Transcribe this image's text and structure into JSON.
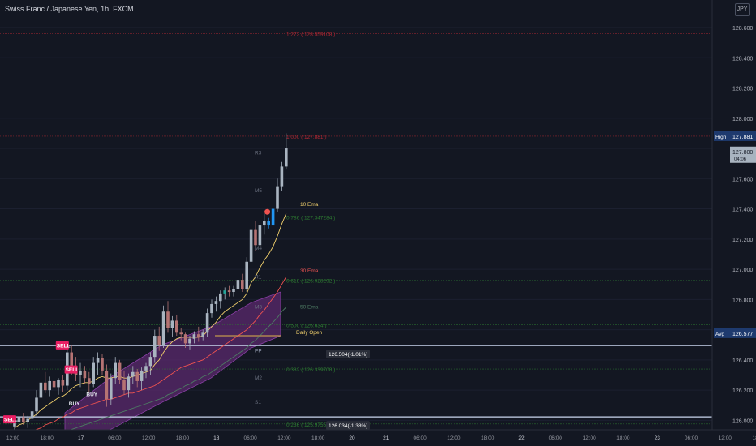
{
  "title": "Swiss Franc / Japanese Yen, 1h, FXCM",
  "currency": "JPY",
  "chart_data": {
    "type": "candlestick",
    "symbol": "CHFJPY",
    "timeframe": "1h",
    "ylim": [
      125.96,
      128.7
    ],
    "y_ticks": [
      "128.600",
      "128.400",
      "128.200",
      "128.000",
      "127.800",
      "127.600",
      "127.400",
      "127.200",
      "127.000",
      "126.800",
      "126.600",
      "126.400",
      "126.200",
      "126.000"
    ],
    "x_ticks": [
      "12:00",
      "18:00",
      "17",
      "06:00",
      "12:00",
      "18:00",
      "18",
      "06:00",
      "12:00",
      "18:00",
      "20",
      "21",
      "06:00",
      "12:00",
      "18:00",
      "22",
      "06:00",
      "12:00",
      "18:00",
      "23",
      "06:00",
      "12:00",
      "18:00"
    ],
    "candles": [
      [
        125.96,
        126.01,
        125.94,
        125.99
      ],
      [
        125.99,
        126.04,
        125.96,
        126.02
      ],
      [
        126.02,
        126.05,
        125.97,
        125.99
      ],
      [
        125.99,
        126.03,
        125.95,
        126.01
      ],
      [
        126.01,
        126.08,
        125.99,
        126.06
      ],
      [
        126.06,
        126.2,
        126.03,
        126.15
      ],
      [
        126.15,
        126.28,
        126.1,
        126.25
      ],
      [
        126.25,
        126.32,
        126.18,
        126.2
      ],
      [
        126.2,
        126.29,
        126.16,
        126.26
      ],
      [
        126.26,
        126.31,
        126.2,
        126.22
      ],
      [
        126.22,
        126.28,
        126.17,
        126.27
      ],
      [
        126.27,
        126.3,
        126.19,
        126.23
      ],
      [
        126.23,
        126.52,
        126.2,
        126.45
      ],
      [
        126.45,
        126.5,
        126.3,
        126.34
      ],
      [
        126.34,
        126.42,
        126.26,
        126.3
      ],
      [
        126.3,
        126.38,
        126.22,
        126.33
      ],
      [
        126.33,
        126.36,
        126.24,
        126.28
      ],
      [
        126.28,
        126.32,
        126.18,
        126.24
      ],
      [
        126.24,
        126.42,
        126.22,
        126.38
      ],
      [
        126.38,
        126.45,
        126.3,
        126.41
      ],
      [
        126.41,
        126.44,
        126.3,
        126.33
      ],
      [
        126.33,
        126.37,
        126.09,
        126.14
      ],
      [
        126.14,
        126.31,
        126.1,
        126.28
      ],
      [
        126.28,
        126.42,
        126.24,
        126.38
      ],
      [
        126.38,
        126.4,
        126.24,
        126.27
      ],
      [
        126.27,
        126.33,
        126.17,
        126.2
      ],
      [
        126.2,
        126.31,
        126.15,
        126.29
      ],
      [
        126.29,
        126.36,
        126.24,
        126.32
      ],
      [
        126.32,
        126.34,
        126.22,
        126.26
      ],
      [
        126.26,
        126.35,
        126.2,
        126.33
      ],
      [
        126.33,
        126.38,
        126.28,
        126.36
      ],
      [
        126.36,
        126.45,
        126.3,
        126.42
      ],
      [
        126.42,
        126.6,
        126.38,
        126.56
      ],
      [
        126.56,
        126.62,
        126.46,
        126.5
      ],
      [
        126.5,
        126.76,
        126.48,
        126.72
      ],
      [
        126.72,
        126.79,
        126.58,
        126.61
      ],
      [
        126.61,
        126.69,
        126.55,
        126.66
      ],
      [
        126.66,
        126.7,
        126.56,
        126.58
      ],
      [
        126.58,
        126.61,
        126.53,
        126.57
      ],
      [
        126.57,
        126.58,
        126.48,
        126.51
      ],
      [
        126.51,
        126.56,
        126.47,
        126.54
      ],
      [
        126.54,
        126.59,
        126.51,
        126.57
      ],
      [
        126.57,
        126.62,
        126.52,
        126.55
      ],
      [
        126.55,
        126.6,
        126.53,
        126.58
      ],
      [
        126.58,
        126.74,
        126.55,
        126.71
      ],
      [
        126.71,
        126.8,
        126.68,
        126.77
      ],
      [
        126.77,
        126.82,
        126.72,
        126.79
      ],
      [
        126.79,
        126.86,
        126.74,
        126.84
      ],
      [
        126.84,
        126.88,
        126.8,
        126.86
      ],
      [
        126.86,
        126.89,
        126.82,
        126.85
      ],
      [
        126.85,
        126.89,
        126.82,
        126.87
      ],
      [
        126.87,
        126.96,
        126.84,
        126.93
      ],
      [
        126.93,
        126.97,
        126.85,
        126.87
      ],
      [
        126.87,
        127.08,
        126.85,
        127.05
      ],
      [
        127.05,
        127.3,
        127.02,
        127.26
      ],
      [
        127.26,
        127.32,
        127.12,
        127.16
      ],
      [
        127.16,
        127.34,
        127.12,
        127.29
      ],
      [
        127.29,
        127.37,
        127.23,
        127.32
      ],
      [
        127.32,
        127.34,
        127.27,
        127.29
      ],
      [
        127.29,
        127.44,
        127.26,
        127.4
      ],
      [
        127.4,
        127.6,
        127.38,
        127.55
      ],
      [
        127.55,
        127.71,
        127.52,
        127.68
      ],
      [
        127.68,
        127.9,
        127.66,
        127.8
      ]
    ],
    "emas": [
      {
        "name": "10 Ema",
        "color": "#f0cf6c",
        "values": [
          125.95,
          125.97,
          125.98,
          126.0,
          126.02,
          126.04,
          126.07,
          126.09,
          126.11,
          126.13,
          126.15,
          126.16,
          126.18,
          126.21,
          126.23,
          126.24,
          126.25,
          126.25,
          126.26,
          126.28,
          126.29,
          126.28,
          126.28,
          126.29,
          126.29,
          126.28,
          126.28,
          126.29,
          126.3,
          126.31,
          126.32,
          126.33,
          126.37,
          126.4,
          126.45,
          126.49,
          126.52,
          126.54,
          126.55,
          126.55,
          126.55,
          126.55,
          126.55,
          126.56,
          126.59,
          126.62,
          126.65,
          126.69,
          126.72,
          126.74,
          126.76,
          126.78,
          126.8,
          126.84,
          126.91,
          126.95,
          127.01,
          127.06,
          127.1,
          127.15,
          127.22,
          127.3,
          127.37
        ]
      },
      {
        "name": "30 Ema",
        "color": "#ef5350",
        "values": [
          125.9,
          125.91,
          125.91,
          125.92,
          125.93,
          125.94,
          125.95,
          125.97,
          125.98,
          125.99,
          126.01,
          126.02,
          126.04,
          126.05,
          126.07,
          126.08,
          126.09,
          126.1,
          126.11,
          126.12,
          126.13,
          126.14,
          126.14,
          126.15,
          126.16,
          126.17,
          126.18,
          126.18,
          126.19,
          126.2,
          126.21,
          126.22,
          126.23,
          126.25,
          126.27,
          126.29,
          126.31,
          126.33,
          126.35,
          126.36,
          126.37,
          126.38,
          126.39,
          126.4,
          126.42,
          126.44,
          126.46,
          126.48,
          126.5,
          126.52,
          126.54,
          126.56,
          126.58,
          126.6,
          126.63,
          126.66,
          126.7,
          126.73,
          126.77,
          126.81,
          126.85,
          126.9,
          126.95
        ]
      },
      {
        "name": "50 Ema",
        "color": "#4d7a63",
        "values": [
          125.82,
          125.83,
          125.84,
          125.84,
          125.85,
          125.86,
          125.87,
          125.88,
          125.89,
          125.9,
          125.91,
          125.92,
          125.93,
          125.94,
          125.95,
          125.96,
          125.97,
          125.98,
          125.99,
          126.0,
          126.01,
          126.02,
          126.03,
          126.04,
          126.05,
          126.06,
          126.07,
          126.08,
          126.09,
          126.1,
          126.11,
          126.12,
          126.13,
          126.14,
          126.15,
          126.17,
          126.18,
          126.2,
          126.21,
          126.23,
          126.24,
          126.26,
          126.27,
          126.29,
          126.3,
          126.32,
          126.34,
          126.36,
          126.38,
          126.4,
          126.42,
          126.44,
          126.46,
          126.48,
          126.51,
          126.53,
          126.56,
          126.59,
          126.62,
          126.65,
          126.68,
          126.72,
          126.75
        ]
      }
    ],
    "cloud": {
      "upper": [
        126.05,
        126.3,
        126.5,
        126.62,
        126.78,
        126.85
      ],
      "lower": [
        125.8,
        125.95,
        126.12,
        126.28,
        126.48,
        126.56
      ]
    },
    "fib_levels": [
      {
        "label": "1.272 ( 128.559108 )",
        "price": 128.56,
        "color": "#b22833"
      },
      {
        "label": "1.000 ( 127.881 )",
        "price": 127.881,
        "color": "#b22833"
      },
      {
        "label": "0.786 ( 127.347284 )",
        "price": 127.347,
        "color": "#2e7d32"
      },
      {
        "label": "0.618 ( 126.928292 )",
        "price": 126.928,
        "color": "#2e7d32"
      },
      {
        "label": "0.500 ( 126.634 )",
        "price": 126.634,
        "color": "#2e7d32"
      },
      {
        "label": "0.382 ( 126.339708 )",
        "price": 126.34,
        "color": "#2e7d32"
      },
      {
        "label": "0.236 ( 125.97558 )",
        "price": 125.976,
        "color": "#2e7d32"
      }
    ],
    "pivots": [
      {
        "label": "R3",
        "price": 127.77
      },
      {
        "label": "M5",
        "price": 127.52
      },
      {
        "label": "M4",
        "price": 127.14
      },
      {
        "label": "R1",
        "price": 126.95
      },
      {
        "label": "M3",
        "price": 126.75
      },
      {
        "label": "PP",
        "price": 126.46
      },
      {
        "label": "M2",
        "price": 126.28
      },
      {
        "label": "S1",
        "price": 126.12
      }
    ],
    "daily_open": {
      "label": "Daily Open",
      "price": 126.56
    },
    "ema_labels": [
      {
        "text": "10 Ema",
        "price": 127.42,
        "color": "#f0cf6c"
      },
      {
        "text": "30 Ema",
        "price": 126.98,
        "color": "#ef5350"
      },
      {
        "text": "50 Ema",
        "price": 126.74,
        "color": "#4d7a63"
      }
    ],
    "measure_lines": [
      {
        "label": "126.504(-1.01%)",
        "price": 126.495
      },
      {
        "label": "126.034(-1.38%)",
        "price": 126.023
      }
    ],
    "signals": [
      {
        "text": "SELL",
        "type": "sell",
        "idx": 12,
        "price": 126.47
      },
      {
        "text": "SELL",
        "type": "sell",
        "idx": 14,
        "price": 126.31
      },
      {
        "text": "BUY",
        "type": "buy",
        "idx": 16,
        "price": 126.16
      },
      {
        "text": "BUY",
        "type": "buy",
        "idx": 12,
        "price": 126.1
      },
      {
        "text": "SELL",
        "type": "sell",
        "idx": 0,
        "price": 125.98
      }
    ],
    "red_dot": {
      "idx": 59,
      "price": 127.38
    },
    "price_labels": [
      {
        "tag": "High",
        "value": "127.881",
        "price": 127.881
      },
      {
        "tag": "",
        "value": "127.800",
        "sub": "04:06",
        "price": 127.78
      },
      {
        "tag": "Avg",
        "value": "126.577",
        "price": 126.577
      }
    ]
  }
}
